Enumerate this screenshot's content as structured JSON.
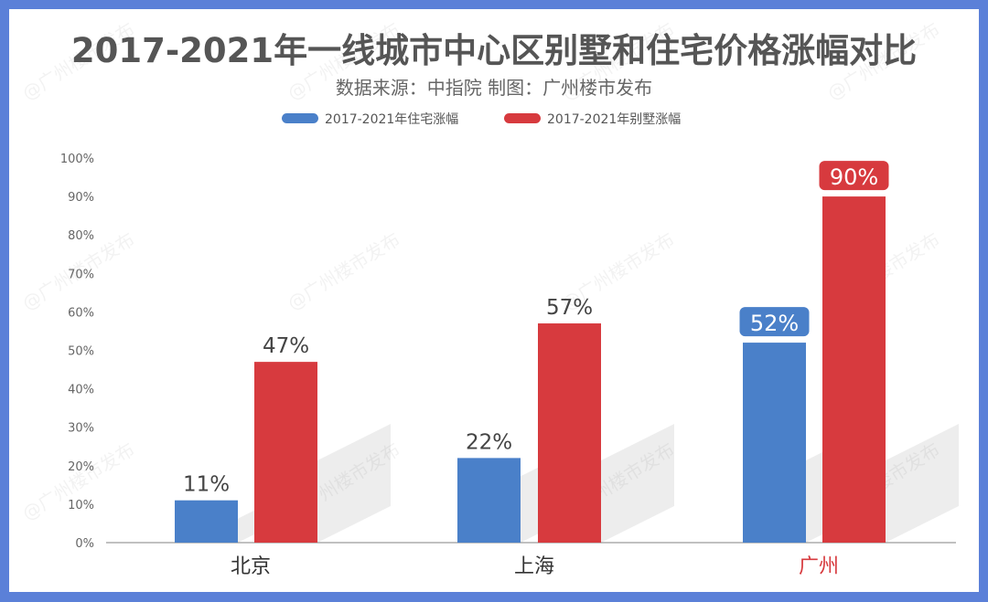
{
  "colors": {
    "frame": "#5b80d8",
    "background": "#ffffff",
    "residential": "#4a80c9",
    "villa": "#d73a3e",
    "highlight_city": "#d73a3e",
    "title": "#555555",
    "subtitle": "#666666",
    "tick": "#666666",
    "city": "#333333",
    "value_label": "#444444"
  },
  "chart_data": {
    "type": "bar",
    "title": "2017-2021年一线城市中心区别墅和住宅价格涨幅对比",
    "subtitle": "数据来源：中指院  制图：广州楼市发布",
    "watermark": "@广州楼市发布",
    "categories": [
      "北京",
      "上海",
      "广州"
    ],
    "highlight_category": "广州",
    "series": [
      {
        "name": "2017-2021年住宅涨幅",
        "color": "#4a80c9",
        "values": [
          11,
          22,
          52
        ],
        "labels": [
          "11%",
          "22%",
          "52%"
        ]
      },
      {
        "name": "2017-2021年别墅涨幅",
        "color": "#d73a3e",
        "values": [
          47,
          57,
          90
        ],
        "labels": [
          "47%",
          "57%",
          "90%"
        ]
      }
    ],
    "ylim": [
      0,
      100
    ],
    "yticks": [
      0,
      10,
      20,
      30,
      40,
      50,
      60,
      70,
      80,
      90,
      100
    ],
    "ytick_labels": [
      "0%",
      "10%",
      "20%",
      "30%",
      "40%",
      "50%",
      "60%",
      "70%",
      "80%",
      "90%",
      "100%"
    ],
    "xlabel": "",
    "ylabel": "",
    "grid": false,
    "legend": "top-center"
  }
}
